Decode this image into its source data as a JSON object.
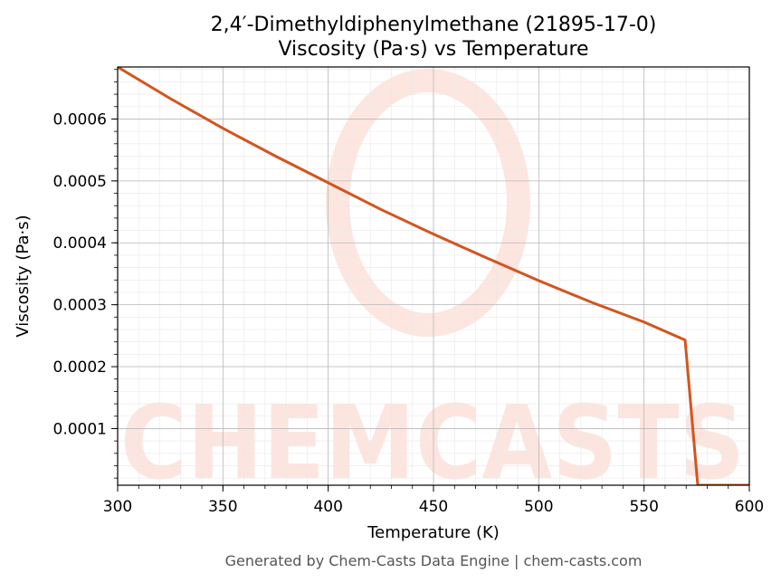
{
  "chart_data": {
    "type": "line",
    "title": "2,4′-Dimethyldiphenylmethane (21895-17-0)",
    "subtitle": "Viscosity (Pa·s) vs Temperature",
    "xlabel": "Temperature (K)",
    "ylabel": "Viscosity (Pa·s)",
    "xlim": [
      300,
      600
    ],
    "ylim": [
      8.5e-06,
      0.000684
    ],
    "x_ticks": [
      300,
      350,
      400,
      450,
      500,
      550,
      600
    ],
    "x_tick_labels": [
      "300",
      "350",
      "400",
      "450",
      "500",
      "550",
      "600"
    ],
    "y_ticks": [
      0.0001,
      0.0002,
      0.0003,
      0.0004,
      0.0005,
      0.0006
    ],
    "y_tick_labels": [
      "0.0001",
      "0.0002",
      "0.0003",
      "0.0004",
      "0.0005",
      "0.0006"
    ],
    "grid": true,
    "series": [
      {
        "color": "#d4541f",
        "x": [
          300,
          325,
          350,
          375,
          400,
          425,
          450,
          475,
          500,
          525,
          550,
          569.5,
          575.5,
          600
        ],
        "y": [
          0.000684,
          0.000633,
          0.000585,
          0.00054,
          0.000497,
          0.000454,
          0.000414,
          0.000376,
          0.000339,
          0.000304,
          0.000272,
          0.000243,
          8.5e-06,
          8.5e-06
        ]
      }
    ],
    "footer": "Generated by Chem-Casts Data Engine | chem-casts.com",
    "watermark": "CHEMCASTS"
  }
}
